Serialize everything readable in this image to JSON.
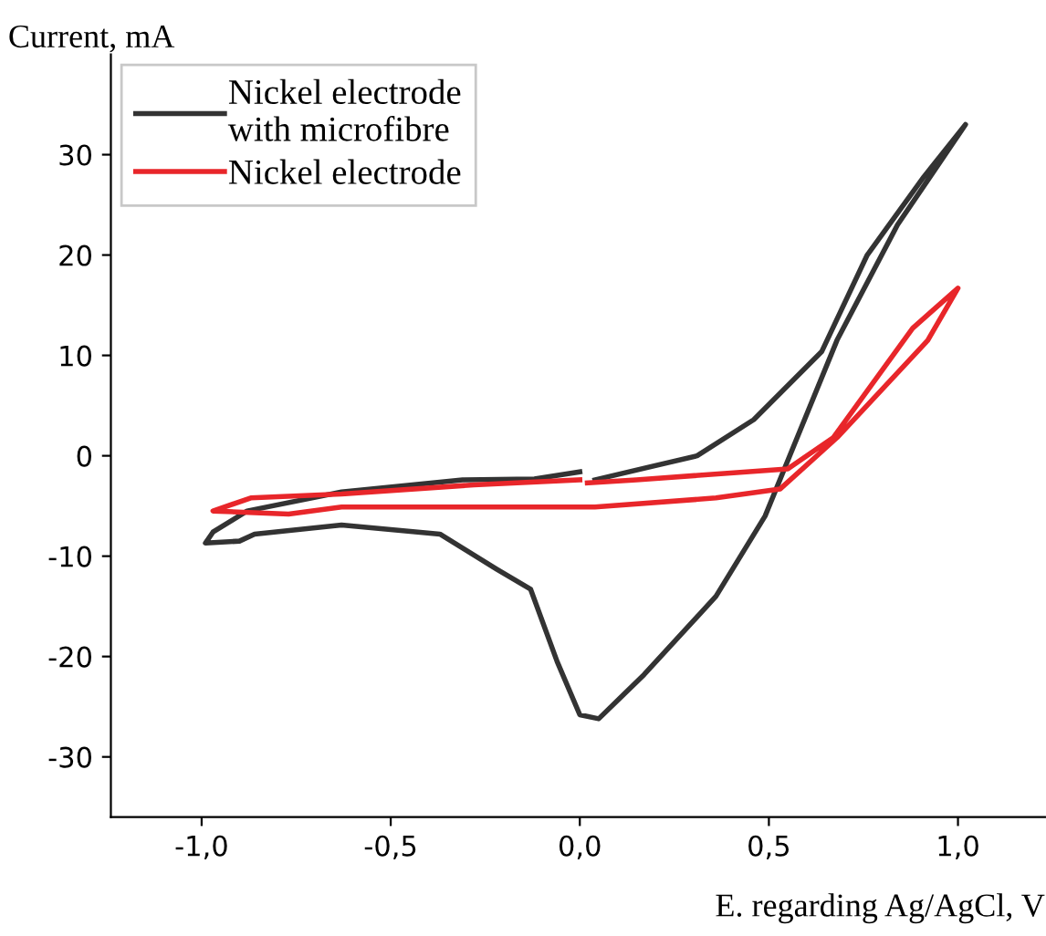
{
  "chart_data": {
    "type": "line",
    "xlabel": "E. regarding Ag/AgCl, V",
    "ylabel": "Current, mA",
    "xlim": [
      -1.24,
      1.23
    ],
    "ylim": [
      -36,
      40
    ],
    "xticks": [
      {
        "value": -1.0,
        "label": "-1,0"
      },
      {
        "value": -0.5,
        "label": "-0,5"
      },
      {
        "value": 0.0,
        "label": "0,0"
      },
      {
        "value": 0.5,
        "label": "0,5"
      },
      {
        "value": 1.0,
        "label": "1,0"
      }
    ],
    "yticks": [
      -30,
      -20,
      -10,
      0,
      10,
      20,
      30
    ],
    "grid": false,
    "legend": "top left",
    "marker": "none",
    "line_style": "solid",
    "series": [
      {
        "name": "Nickel electrode\nwith microfibre",
        "color": "#333333",
        "x": [
          0.0,
          -0.12,
          -0.31,
          -0.63,
          -0.88,
          -0.97,
          -0.99,
          -0.9,
          -0.86,
          -0.63,
          -0.37,
          -0.22,
          -0.13,
          -0.06,
          0.0,
          0.05,
          0.17,
          0.36,
          0.49,
          0.68,
          0.84,
          1.02,
          0.91,
          0.76,
          0.64,
          0.46,
          0.31,
          0.04
        ],
        "values": [
          -1.6,
          -2.3,
          -2.4,
          -3.6,
          -5.5,
          -7.6,
          -8.7,
          -8.5,
          -7.8,
          -6.9,
          -7.8,
          -11.3,
          -13.3,
          -20.5,
          -25.8,
          -26.2,
          -21.8,
          -14.0,
          -6.0,
          11.5,
          23.0,
          33.0,
          27.8,
          20.0,
          10.4,
          3.6,
          0.0,
          -2.4
        ]
      },
      {
        "name": "Nickel electrode",
        "color": "#e8262a",
        "x": [
          0.0,
          -0.28,
          -0.63,
          -0.87,
          -0.97,
          -0.77,
          -0.63,
          0.04,
          0.36,
          0.53,
          0.68,
          0.92,
          1.0,
          0.88,
          0.67,
          0.55,
          0.15,
          0.02
        ],
        "values": [
          -2.4,
          -2.9,
          -3.8,
          -4.2,
          -5.5,
          -5.8,
          -5.1,
          -5.1,
          -4.2,
          -3.3,
          1.8,
          11.5,
          16.7,
          12.7,
          1.8,
          -1.3,
          -2.4,
          -2.7
        ]
      }
    ]
  }
}
